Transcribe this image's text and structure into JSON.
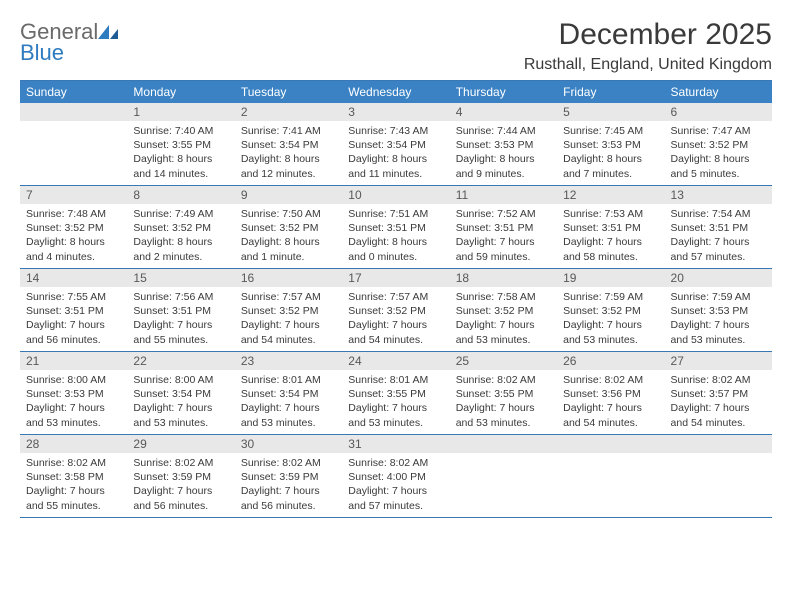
{
  "logo": {
    "word1": "General",
    "word2": "Blue"
  },
  "header": {
    "title": "December 2025",
    "location": "Rusthall, England, United Kingdom"
  },
  "colors": {
    "header_bg": "#3a82c4",
    "border": "#3a78b5",
    "daynum_bg": "#e8e8e8",
    "text": "#3a3a3a",
    "logo_gray": "#6a6a6a",
    "logo_blue": "#2f7bbf"
  },
  "days_of_week": [
    "Sunday",
    "Monday",
    "Tuesday",
    "Wednesday",
    "Thursday",
    "Friday",
    "Saturday"
  ],
  "weeks": [
    [
      null,
      {
        "n": "1",
        "sr": "7:40 AM",
        "ss": "3:55 PM",
        "dl": "8 hours and 14 minutes."
      },
      {
        "n": "2",
        "sr": "7:41 AM",
        "ss": "3:54 PM",
        "dl": "8 hours and 12 minutes."
      },
      {
        "n": "3",
        "sr": "7:43 AM",
        "ss": "3:54 PM",
        "dl": "8 hours and 11 minutes."
      },
      {
        "n": "4",
        "sr": "7:44 AM",
        "ss": "3:53 PM",
        "dl": "8 hours and 9 minutes."
      },
      {
        "n": "5",
        "sr": "7:45 AM",
        "ss": "3:53 PM",
        "dl": "8 hours and 7 minutes."
      },
      {
        "n": "6",
        "sr": "7:47 AM",
        "ss": "3:52 PM",
        "dl": "8 hours and 5 minutes."
      }
    ],
    [
      {
        "n": "7",
        "sr": "7:48 AM",
        "ss": "3:52 PM",
        "dl": "8 hours and 4 minutes."
      },
      {
        "n": "8",
        "sr": "7:49 AM",
        "ss": "3:52 PM",
        "dl": "8 hours and 2 minutes."
      },
      {
        "n": "9",
        "sr": "7:50 AM",
        "ss": "3:52 PM",
        "dl": "8 hours and 1 minute."
      },
      {
        "n": "10",
        "sr": "7:51 AM",
        "ss": "3:51 PM",
        "dl": "8 hours and 0 minutes."
      },
      {
        "n": "11",
        "sr": "7:52 AM",
        "ss": "3:51 PM",
        "dl": "7 hours and 59 minutes."
      },
      {
        "n": "12",
        "sr": "7:53 AM",
        "ss": "3:51 PM",
        "dl": "7 hours and 58 minutes."
      },
      {
        "n": "13",
        "sr": "7:54 AM",
        "ss": "3:51 PM",
        "dl": "7 hours and 57 minutes."
      }
    ],
    [
      {
        "n": "14",
        "sr": "7:55 AM",
        "ss": "3:51 PM",
        "dl": "7 hours and 56 minutes."
      },
      {
        "n": "15",
        "sr": "7:56 AM",
        "ss": "3:51 PM",
        "dl": "7 hours and 55 minutes."
      },
      {
        "n": "16",
        "sr": "7:57 AM",
        "ss": "3:52 PM",
        "dl": "7 hours and 54 minutes."
      },
      {
        "n": "17",
        "sr": "7:57 AM",
        "ss": "3:52 PM",
        "dl": "7 hours and 54 minutes."
      },
      {
        "n": "18",
        "sr": "7:58 AM",
        "ss": "3:52 PM",
        "dl": "7 hours and 53 minutes."
      },
      {
        "n": "19",
        "sr": "7:59 AM",
        "ss": "3:52 PM",
        "dl": "7 hours and 53 minutes."
      },
      {
        "n": "20",
        "sr": "7:59 AM",
        "ss": "3:53 PM",
        "dl": "7 hours and 53 minutes."
      }
    ],
    [
      {
        "n": "21",
        "sr": "8:00 AM",
        "ss": "3:53 PM",
        "dl": "7 hours and 53 minutes."
      },
      {
        "n": "22",
        "sr": "8:00 AM",
        "ss": "3:54 PM",
        "dl": "7 hours and 53 minutes."
      },
      {
        "n": "23",
        "sr": "8:01 AM",
        "ss": "3:54 PM",
        "dl": "7 hours and 53 minutes."
      },
      {
        "n": "24",
        "sr": "8:01 AM",
        "ss": "3:55 PM",
        "dl": "7 hours and 53 minutes."
      },
      {
        "n": "25",
        "sr": "8:02 AM",
        "ss": "3:55 PM",
        "dl": "7 hours and 53 minutes."
      },
      {
        "n": "26",
        "sr": "8:02 AM",
        "ss": "3:56 PM",
        "dl": "7 hours and 54 minutes."
      },
      {
        "n": "27",
        "sr": "8:02 AM",
        "ss": "3:57 PM",
        "dl": "7 hours and 54 minutes."
      }
    ],
    [
      {
        "n": "28",
        "sr": "8:02 AM",
        "ss": "3:58 PM",
        "dl": "7 hours and 55 minutes."
      },
      {
        "n": "29",
        "sr": "8:02 AM",
        "ss": "3:59 PM",
        "dl": "7 hours and 56 minutes."
      },
      {
        "n": "30",
        "sr": "8:02 AM",
        "ss": "3:59 PM",
        "dl": "7 hours and 56 minutes."
      },
      {
        "n": "31",
        "sr": "8:02 AM",
        "ss": "4:00 PM",
        "dl": "7 hours and 57 minutes."
      },
      null,
      null,
      null
    ]
  ],
  "labels": {
    "sunrise": "Sunrise: ",
    "sunset": "Sunset: ",
    "daylight": "Daylight: "
  }
}
